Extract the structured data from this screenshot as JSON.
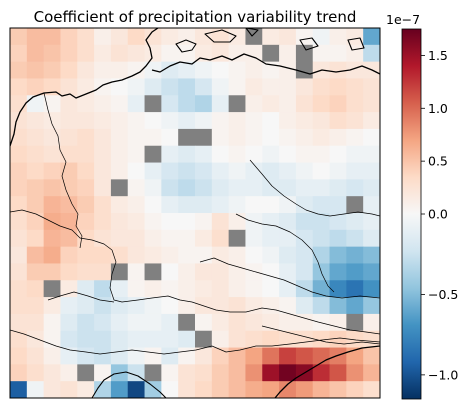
{
  "chart_data": {
    "type": "heatmap",
    "title": "Coefficient of precipitation variability trend",
    "colorbar": {
      "cmap": "RdBu_r",
      "vmin": -1.15,
      "vmax": 1.75,
      "offset_label": "1e−7",
      "ticks": [
        1.5,
        1.0,
        0.5,
        0.0,
        -0.5,
        -1.0
      ],
      "tick_labels": [
        "1.5",
        "1.0",
        "0.5",
        "0.0",
        "−0.5",
        "−1.0"
      ]
    },
    "missing_color": "#808080",
    "rows": 22,
    "cols": 22,
    "grid": [
      [
        0.45,
        0.55,
        0.55,
        0.4,
        0.3,
        0.1,
        0.2,
        0.35,
        0.25,
        0.15,
        0.1,
        0.2,
        0.25,
        0.15,
        null,
        0.15,
        0.2,
        0.05,
        -0.05,
        0.1,
        0.15,
        -0.6
      ],
      [
        0.4,
        0.55,
        0.5,
        0.4,
        0.3,
        0.15,
        0.25,
        0.2,
        0.15,
        0.05,
        0.05,
        0.15,
        0.2,
        0.1,
        0.1,
        null,
        0.1,
        null,
        0.05,
        0.05,
        0.1,
        -0.3
      ],
      [
        0.45,
        0.5,
        0.45,
        0.35,
        0.2,
        0.1,
        0.1,
        0.05,
        -0.05,
        -0.15,
        -0.1,
        -0.05,
        0.0,
        0.05,
        0.1,
        0.05,
        0.1,
        null,
        0.2,
        0.25,
        0.2,
        0.2
      ],
      [
        0.35,
        0.4,
        0.35,
        0.25,
        0.15,
        0.05,
        0.0,
        -0.05,
        -0.15,
        -0.25,
        -0.3,
        -0.2,
        -0.05,
        0.05,
        0.15,
        0.1,
        0.1,
        0.2,
        0.3,
        0.35,
        0.3,
        0.25
      ],
      [
        0.3,
        -0.05,
        0.05,
        0.2,
        0.15,
        0.1,
        0.05,
        -0.1,
        null,
        -0.2,
        -0.3,
        -0.35,
        -0.1,
        null,
        0.1,
        0.15,
        0.1,
        0.25,
        0.35,
        0.4,
        0.3,
        0.25
      ],
      [
        0.25,
        0.2,
        0.15,
        0.2,
        0.2,
        0.15,
        0.1,
        0.05,
        0.0,
        -0.05,
        -0.1,
        -0.05,
        0.05,
        0.1,
        0.05,
        0.0,
        0.1,
        0.15,
        0.2,
        0.3,
        0.25,
        0.15
      ],
      [
        0.3,
        0.25,
        0.2,
        0.25,
        0.3,
        0.2,
        0.1,
        0.05,
        0.05,
        0.0,
        null,
        null,
        0.05,
        0.1,
        0.05,
        0.0,
        0.05,
        0.1,
        0.15,
        0.1,
        0.05,
        0.0
      ],
      [
        0.35,
        0.3,
        0.25,
        0.3,
        0.3,
        0.2,
        0.1,
        0.05,
        null,
        -0.1,
        -0.15,
        -0.1,
        0.0,
        0.05,
        0.0,
        -0.05,
        0.0,
        0.05,
        0.05,
        0.0,
        -0.05,
        -0.05
      ],
      [
        0.4,
        0.35,
        0.4,
        0.45,
        0.35,
        0.2,
        0.1,
        0.0,
        -0.1,
        -0.2,
        -0.25,
        -0.2,
        -0.1,
        -0.05,
        -0.1,
        -0.15,
        -0.1,
        -0.05,
        0.0,
        -0.05,
        -0.1,
        -0.1
      ],
      [
        0.4,
        0.45,
        0.5,
        0.45,
        0.4,
        0.2,
        null,
        0.05,
        -0.05,
        -0.25,
        -0.3,
        -0.25,
        -0.15,
        -0.1,
        -0.1,
        -0.15,
        -0.15,
        -0.1,
        -0.1,
        -0.15,
        -0.2,
        -0.15
      ],
      [
        0.35,
        0.45,
        0.6,
        0.55,
        0.45,
        0.3,
        0.15,
        0.1,
        0.0,
        -0.1,
        -0.15,
        -0.15,
        -0.1,
        -0.05,
        0.0,
        0.0,
        -0.05,
        -0.15,
        -0.2,
        -0.2,
        null,
        -0.1
      ],
      [
        0.3,
        0.4,
        0.65,
        0.6,
        0.4,
        0.3,
        0.2,
        0.15,
        0.05,
        0.0,
        0.0,
        0.05,
        0.25,
        0.1,
        -0.05,
        -0.1,
        -0.15,
        -0.25,
        -0.25,
        -0.2,
        -0.15,
        -0.1
      ],
      [
        0.25,
        0.35,
        0.6,
        0.55,
        0.35,
        0.25,
        0.2,
        0.2,
        0.1,
        0.05,
        0.05,
        0.15,
        0.3,
        null,
        -0.05,
        -0.1,
        -0.1,
        -0.2,
        -0.25,
        -0.3,
        -0.25,
        -0.15
      ],
      [
        0.2,
        0.55,
        0.65,
        0.4,
        0.35,
        0.35,
        0.3,
        0.2,
        0.15,
        0.1,
        0.05,
        0.05,
        0.15,
        0.1,
        0.0,
        -0.05,
        -0.15,
        -0.2,
        -0.35,
        -0.5,
        -0.55,
        -0.5
      ],
      [
        0.25,
        0.45,
        0.45,
        0.35,
        0.3,
        0.3,
        null,
        0.05,
        null,
        0.0,
        0.1,
        0.2,
        0.2,
        0.1,
        0.05,
        0.0,
        -0.1,
        -0.2,
        -0.45,
        -0.6,
        -0.65,
        -0.6
      ],
      [
        0.3,
        0.35,
        null,
        0.15,
        -0.15,
        -0.3,
        -0.1,
        0.05,
        0.1,
        0.05,
        0.1,
        0.15,
        0.2,
        0.1,
        0.05,
        0.0,
        -0.1,
        -0.3,
        -0.55,
        -0.75,
        -0.85,
        -0.7
      ],
      [
        0.3,
        0.3,
        0.15,
        -0.1,
        -0.15,
        -0.25,
        -0.15,
        -0.1,
        -0.05,
        0.0,
        0.1,
        0.2,
        0.2,
        0.25,
        0.15,
        0.1,
        0.05,
        -0.15,
        -0.3,
        -0.5,
        -0.6,
        -0.45
      ],
      [
        0.25,
        0.25,
        0.05,
        -0.15,
        -0.25,
        -0.2,
        -0.1,
        -0.05,
        -0.05,
        -0.1,
        null,
        0.05,
        0.15,
        0.25,
        0.2,
        0.15,
        0.1,
        0.1,
        0.05,
        0.1,
        null,
        0.1
      ],
      [
        0.3,
        0.2,
        0.05,
        -0.2,
        -0.25,
        -0.25,
        -0.15,
        -0.1,
        -0.1,
        -0.1,
        -0.15,
        null,
        0.1,
        0.25,
        0.3,
        0.35,
        0.3,
        0.3,
        0.35,
        0.4,
        0.35,
        0.3
      ],
      [
        0.35,
        0.25,
        0.1,
        -0.1,
        -0.2,
        -0.25,
        -0.15,
        -0.05,
        0.05,
        -0.15,
        0.05,
        0.2,
        0.4,
        0.55,
        0.7,
        0.95,
        1.2,
        1.1,
        1.0,
        0.9,
        0.7,
        0.5
      ],
      [
        0.4,
        0.3,
        0.2,
        0.1,
        null,
        0.05,
        -0.45,
        -0.25,
        null,
        0.05,
        0.25,
        0.3,
        0.45,
        0.55,
        0.8,
        1.5,
        1.7,
        1.6,
        1.3,
        1.1,
        0.8,
        0.6
      ],
      [
        -0.95,
        -0.05,
        0.2,
        0.25,
        0.15,
        -0.35,
        -0.65,
        -1.05,
        -0.4,
        0.0,
        0.25,
        0.35,
        0.45,
        0.55,
        0.65,
        0.7,
        0.85,
        0.75,
        0.6,
        0.5,
        0.4,
        0.3
      ]
    ]
  }
}
